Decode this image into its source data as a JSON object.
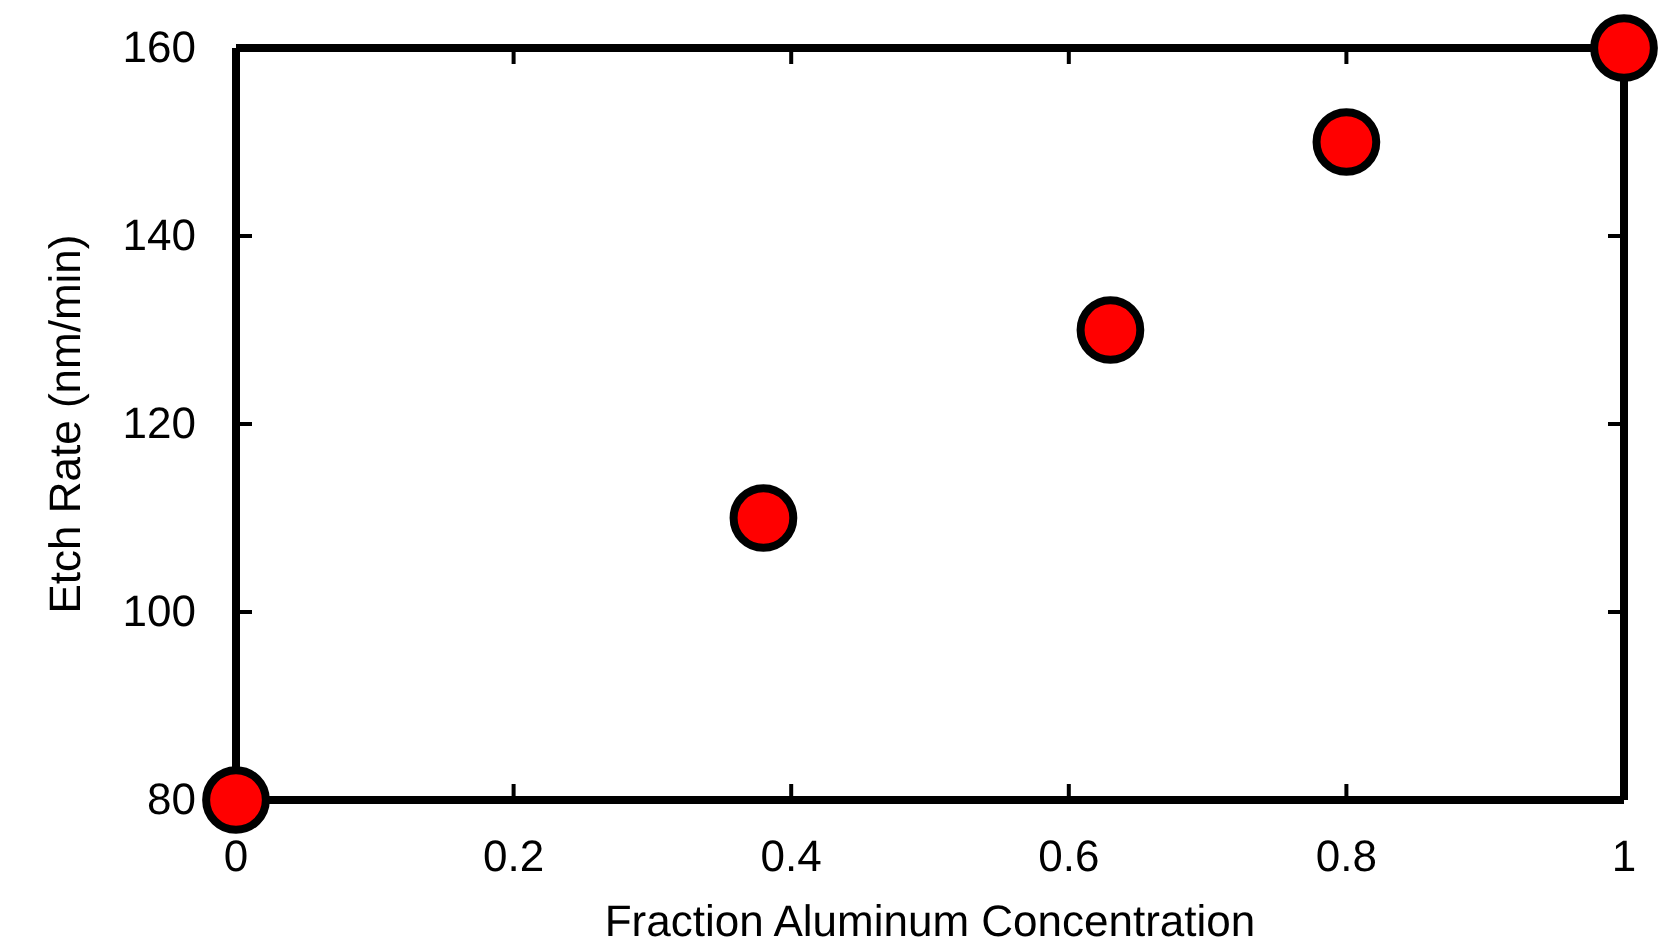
{
  "chart_data": {
    "type": "scatter",
    "xlabel": "Fraction Aluminum Concentration",
    "ylabel": "Etch Rate (nm/min)",
    "x": [
      0,
      0.38,
      0.63,
      0.8,
      1
    ],
    "series": [
      {
        "color": "#ff0000",
        "values": [
          80,
          110,
          130,
          150,
          160
        ]
      }
    ],
    "xlim": [
      0,
      1
    ],
    "xticks": [
      0,
      0.2,
      0.4,
      0.6,
      0.8,
      1
    ],
    "ylim": [
      80,
      160
    ],
    "yticks": [
      80,
      100,
      120,
      140,
      160
    ],
    "marker": "circle",
    "grid": false
  }
}
